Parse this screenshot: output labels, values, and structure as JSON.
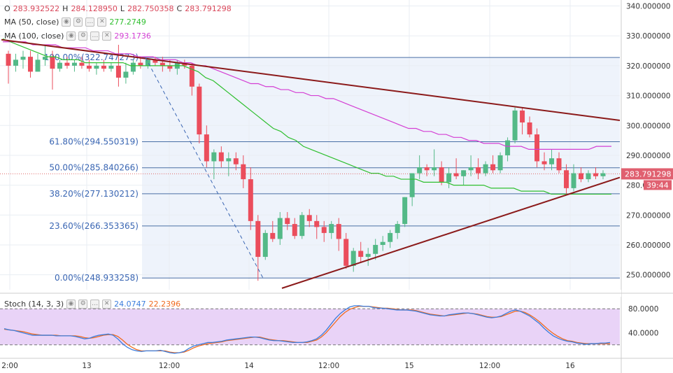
{
  "ohlc": {
    "o_label": "O",
    "o": "283.932522",
    "h_label": "H",
    "h": "284.128950",
    "l_label": "L",
    "l": "282.750358",
    "c_label": "C",
    "c": "283.791298"
  },
  "ma50": {
    "label": "MA (50, close)",
    "value": "277.2749",
    "color": "#2fbf2f"
  },
  "ma100": {
    "label": "MA (100, close)",
    "value": "293.1736",
    "color": "#d43fd4"
  },
  "stoch": {
    "label": "Stoch (14, 3, 3)",
    "k": "24.0747",
    "d": "22.2396",
    "k_color": "#3b7ddd",
    "d_color": "#f06a1e"
  },
  "price_tag": {
    "value": "283.791298",
    "timer": "39:44"
  },
  "fib_levels": [
    {
      "label": "100.00%(322.747273)",
      "value": 322.747273
    },
    {
      "label": "61.80%(294.550319)",
      "value": 294.550319
    },
    {
      "label": "50.00%(285.840266)",
      "value": 285.840266
    },
    {
      "label": "38.20%(277.130212)",
      "value": 277.130212
    },
    {
      "label": "23.60%(266.353365)",
      "value": 266.353365
    },
    {
      "label": "0.00%(248.933258)",
      "value": 248.933258
    }
  ],
  "chart_data": {
    "type": "candlestick",
    "ylim": [
      245,
      342
    ],
    "y_ticks": [
      "340.000000",
      "330.000000",
      "320.000000",
      "310.000000",
      "300.000000",
      "290.000000",
      "280.000000",
      "270.000000",
      "260.000000",
      "250.000000"
    ],
    "y_tick_values": [
      340,
      330,
      320,
      310,
      300,
      290,
      280,
      270,
      260,
      250
    ],
    "x_ticks": [
      "2:00",
      "13",
      "12:00",
      "14",
      "12:00",
      "15",
      "12:00",
      "16"
    ],
    "stoch_ticks": [
      "80.0000",
      "40.0000"
    ],
    "stoch_tick_values": [
      80,
      40
    ],
    "stoch_bands": [
      80,
      20
    ],
    "candles": [
      [
        324,
        325,
        314,
        320
      ],
      [
        320,
        324,
        318,
        322
      ],
      [
        322,
        325,
        319,
        323
      ],
      [
        323,
        325,
        316,
        318
      ],
      [
        318,
        324,
        318,
        322
      ],
      [
        322,
        327,
        320,
        323
      ],
      [
        323,
        325,
        312,
        319
      ],
      [
        319,
        322,
        318,
        321
      ],
      [
        321,
        323,
        319,
        320
      ],
      [
        320,
        322,
        318,
        321
      ],
      [
        321,
        323,
        319,
        320
      ],
      [
        320,
        322,
        318,
        319
      ],
      [
        319,
        321,
        317,
        320
      ],
      [
        320,
        322,
        318,
        319
      ],
      [
        319,
        321,
        318,
        320
      ],
      [
        320,
        327,
        313,
        316
      ],
      [
        316,
        321,
        314,
        318
      ],
      [
        318,
        322,
        317,
        321
      ],
      [
        321,
        323,
        319,
        320
      ],
      [
        320,
        323,
        319,
        322
      ],
      [
        322,
        323,
        320,
        321
      ],
      [
        321,
        323,
        318,
        320
      ],
      [
        320,
        322,
        318,
        319
      ],
      [
        319,
        322,
        317,
        321
      ],
      [
        321,
        322,
        319,
        320
      ],
      [
        320,
        321,
        310,
        313
      ],
      [
        313,
        314,
        294,
        297
      ],
      [
        297,
        300,
        286,
        288
      ],
      [
        288,
        292,
        282,
        291
      ],
      [
        291,
        293,
        286,
        288
      ],
      [
        288,
        291,
        283,
        289
      ],
      [
        289,
        291,
        285,
        287
      ],
      [
        287,
        290,
        279,
        282
      ],
      [
        282,
        286,
        265,
        268
      ],
      [
        268,
        270,
        248,
        256
      ],
      [
        256,
        265,
        255,
        264
      ],
      [
        264,
        268,
        261,
        262
      ],
      [
        262,
        271,
        260,
        269
      ],
      [
        269,
        271,
        265,
        267
      ],
      [
        267,
        269,
        262,
        263
      ],
      [
        263,
        271,
        262,
        270
      ],
      [
        270,
        272,
        266,
        268
      ],
      [
        268,
        270,
        262,
        266
      ],
      [
        266,
        268,
        261,
        264
      ],
      [
        264,
        268,
        262,
        267
      ],
      [
        267,
        269,
        258,
        262
      ],
      [
        262,
        264,
        252,
        253
      ],
      [
        253,
        259,
        251,
        258
      ],
      [
        258,
        261,
        254,
        256
      ],
      [
        256,
        259,
        253,
        257
      ],
      [
        257,
        262,
        255,
        260
      ],
      [
        260,
        263,
        258,
        261
      ],
      [
        261,
        265,
        259,
        264
      ],
      [
        264,
        268,
        262,
        267
      ],
      [
        267,
        276,
        266,
        276
      ],
      [
        276,
        284,
        273,
        284
      ],
      [
        284,
        290,
        282,
        286
      ],
      [
        286,
        287,
        283,
        285
      ],
      [
        285,
        292,
        283,
        286
      ],
      [
        286,
        288,
        280,
        281
      ],
      [
        281,
        286,
        279,
        284
      ],
      [
        284,
        289,
        282,
        283
      ],
      [
        283,
        285,
        280,
        285
      ],
      [
        285,
        290,
        283,
        286
      ],
      [
        286,
        289,
        282,
        284
      ],
      [
        284,
        288,
        283,
        287
      ],
      [
        287,
        290,
        284,
        285
      ],
      [
        285,
        291,
        284,
        290
      ],
      [
        290,
        296,
        288,
        295
      ],
      [
        295,
        306,
        294,
        305
      ],
      [
        305,
        306,
        297,
        301
      ],
      [
        301,
        303,
        296,
        297
      ],
      [
        297,
        299,
        286,
        288
      ],
      [
        288,
        291,
        285,
        287
      ],
      [
        287,
        292,
        285,
        289
      ],
      [
        289,
        291,
        284,
        285
      ],
      [
        285,
        287,
        277,
        279
      ],
      [
        279,
        287,
        278,
        284
      ],
      [
        284,
        286,
        281,
        282
      ],
      [
        282,
        285,
        281,
        284
      ],
      [
        284,
        286,
        282,
        283
      ],
      [
        283,
        285,
        282,
        284
      ]
    ],
    "ma50": [
      329,
      328,
      327,
      326,
      325,
      324,
      323,
      323,
      322,
      322,
      322,
      321,
      321,
      321,
      321,
      321,
      321,
      320,
      320,
      320,
      320,
      320,
      320,
      320,
      320,
      319,
      318,
      316,
      315,
      313,
      311,
      309,
      307,
      305,
      303,
      301,
      299,
      298,
      296,
      295,
      293,
      292,
      291,
      290,
      289,
      288,
      287,
      286,
      285,
      284,
      284,
      283,
      283,
      282,
      282,
      282,
      281,
      281,
      281,
      281,
      280,
      280,
      280,
      280,
      280,
      279,
      279,
      279,
      279,
      278,
      278,
      278,
      278,
      277,
      277,
      277,
      277,
      277,
      277,
      277,
      277,
      277
    ],
    "ma100": [
      328,
      328,
      328,
      328,
      327,
      327,
      327,
      327,
      326,
      326,
      326,
      326,
      325,
      325,
      325,
      324,
      324,
      324,
      323,
      323,
      323,
      322,
      322,
      322,
      321,
      321,
      320,
      320,
      319,
      318,
      317,
      316,
      315,
      314,
      314,
      313,
      313,
      312,
      312,
      311,
      311,
      310,
      310,
      309,
      309,
      308,
      307,
      306,
      305,
      304,
      303,
      302,
      301,
      300,
      299,
      299,
      298,
      298,
      297,
      297,
      296,
      296,
      295,
      295,
      294,
      294,
      294,
      293,
      293,
      293,
      292,
      292,
      292,
      292,
      292,
      292,
      292,
      292,
      292,
      293,
      293,
      293
    ],
    "stoch_k": [
      47,
      45,
      44,
      42,
      40,
      38,
      36,
      36,
      36,
      36,
      36,
      35,
      35,
      35,
      35,
      34,
      32,
      30,
      31,
      34,
      36,
      37,
      38,
      36,
      30,
      22,
      16,
      12,
      10,
      9,
      10,
      10,
      10,
      11,
      9,
      7,
      6,
      7,
      9,
      14,
      18,
      20,
      22,
      24,
      24,
      25,
      26,
      28,
      29,
      30,
      31,
      32,
      33,
      33,
      32,
      30,
      28,
      27,
      27,
      26,
      25,
      24,
      24,
      24,
      25,
      27,
      30,
      36,
      44,
      54,
      64,
      72,
      78,
      83,
      85,
      85,
      84,
      84,
      82,
      81,
      81,
      80,
      79,
      78,
      78,
      78,
      77,
      76,
      74,
      72,
      70,
      69,
      68,
      68,
      70,
      71,
      72,
      73,
      73,
      72,
      70,
      68,
      66,
      65,
      66,
      68,
      72,
      76,
      78,
      76,
      72,
      68,
      62,
      56,
      48,
      41,
      35,
      31,
      28,
      26,
      25,
      23,
      22,
      21,
      22,
      22,
      23,
      23,
      24
    ],
    "stoch_d": [
      46,
      45,
      44,
      43,
      42,
      40,
      38,
      37,
      36,
      36,
      36,
      36,
      35,
      35,
      35,
      35,
      34,
      32,
      31,
      32,
      34,
      36,
      37,
      37,
      34,
      28,
      21,
      16,
      12,
      10,
      10,
      10,
      10,
      10,
      10,
      8,
      7,
      7,
      8,
      11,
      15,
      18,
      20,
      22,
      23,
      24,
      25,
      27,
      28,
      29,
      30,
      31,
      32,
      33,
      33,
      31,
      29,
      28,
      27,
      27,
      26,
      25,
      24,
      24,
      24,
      26,
      28,
      33,
      40,
      49,
      58,
      67,
      74,
      79,
      82,
      84,
      84,
      84,
      83,
      82,
      81,
      81,
      80,
      79,
      78,
      78,
      78,
      77,
      75,
      73,
      71,
      70,
      69,
      68,
      69,
      70,
      71,
      72,
      73,
      72,
      71,
      69,
      67,
      66,
      66,
      67,
      70,
      73,
      76,
      76,
      74,
      70,
      65,
      59,
      52,
      45,
      39,
      34,
      30,
      27,
      26,
      24,
      23,
      22,
      22,
      22,
      22,
      22,
      22
    ]
  }
}
